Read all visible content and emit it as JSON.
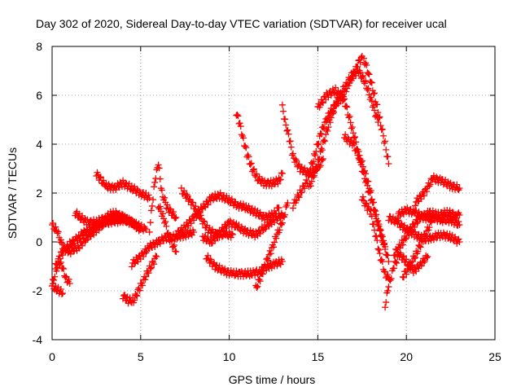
{
  "chart_data": {
    "type": "scatter",
    "title": "Day 302 of 2020, Sidereal Day-to-day VTEC variation (SDTVAR) for receiver ucal",
    "xlabel": "GPS time / hours",
    "ylabel": "SDTVAR / TECUs",
    "xlim": [
      0,
      25
    ],
    "ylim": [
      -4,
      8
    ],
    "xticks": [
      "0",
      "5",
      "10",
      "15",
      "20",
      "25"
    ],
    "yticks": [
      "-4",
      "-2",
      "0",
      "2",
      "4",
      "6",
      "8"
    ],
    "grid": true,
    "marker": "+",
    "color": "#ff0000",
    "series": [
      {
        "name": "s1",
        "x": [
          0.0,
          0.3,
          0.6,
          1.0,
          1.5,
          2.0,
          2.5,
          3.0,
          3.5,
          4.0,
          4.5,
          5.0
        ],
        "y": [
          0.7,
          0.4,
          -0.2,
          -0.4,
          -0.2,
          0.2,
          0.5,
          0.8,
          1.0,
          1.0,
          0.8,
          0.5
        ]
      },
      {
        "name": "s2",
        "x": [
          0.0,
          0.2,
          0.4,
          0.6,
          0.8,
          1.0
        ],
        "y": [
          -1.8,
          -1.2,
          -0.8,
          -1.1,
          -1.5,
          -1.7
        ]
      },
      {
        "name": "s3",
        "x": [
          0.0,
          0.2,
          0.4,
          0.6
        ],
        "y": [
          -1.8,
          -1.9,
          -2.0,
          -2.1
        ]
      },
      {
        "name": "s4",
        "x": [
          0.2,
          0.5,
          1.0,
          1.5,
          2.0,
          3.0,
          4.0,
          4.5
        ],
        "y": [
          -1.0,
          -0.5,
          -0.1,
          0.2,
          0.5,
          0.8,
          0.9,
          0.8
        ]
      },
      {
        "name": "s5",
        "x": [
          1.3,
          1.6,
          2.0,
          2.5,
          3.0,
          3.5,
          4.0,
          4.5,
          5.0,
          5.3
        ],
        "y": [
          1.2,
          1.0,
          0.8,
          0.8,
          1.0,
          1.2,
          1.0,
          0.8,
          0.6,
          0.5
        ]
      },
      {
        "name": "s6",
        "x": [
          2.5,
          3.0,
          3.5,
          4.0,
          4.5,
          5.0,
          5.5
        ],
        "y": [
          2.8,
          2.3,
          2.2,
          2.4,
          2.2,
          2.0,
          1.8
        ]
      },
      {
        "name": "s7",
        "x": [
          4.0,
          4.3,
          4.6,
          5.0,
          5.5,
          5.9
        ],
        "y": [
          -2.2,
          -2.4,
          -2.4,
          -1.8,
          -1.1,
          -0.6
        ]
      },
      {
        "name": "s8",
        "x": [
          4.5,
          5.0,
          5.5,
          6.0,
          6.5,
          7.0,
          7.5,
          8.0
        ],
        "y": [
          -0.9,
          -0.6,
          -0.2,
          0.0,
          0.2,
          0.2,
          0.3,
          0.4
        ]
      },
      {
        "name": "s9",
        "x": [
          5.5,
          5.8,
          6.0,
          6.2,
          6.5,
          7.0
        ],
        "y": [
          0.5,
          2.5,
          3.2,
          2.0,
          1.4,
          1.0
        ]
      },
      {
        "name": "s10",
        "x": [
          6.0,
          6.3,
          6.6,
          7.0
        ],
        "y": [
          1.5,
          1.0,
          0.2,
          -0.4
        ]
      },
      {
        "name": "s11",
        "x": [
          7.3,
          7.8,
          8.3,
          8.8,
          9.3,
          9.8,
          10.2
        ],
        "y": [
          2.1,
          1.7,
          1.1,
          0.5,
          0.3,
          0.3,
          0.3
        ]
      },
      {
        "name": "s12",
        "x": [
          7.0,
          7.5,
          8.0,
          8.5,
          9.0,
          9.5,
          10.0,
          10.5,
          11.0,
          11.5,
          12.0,
          12.5,
          12.8
        ],
        "y": [
          0.3,
          0.6,
          1.0,
          1.4,
          1.8,
          1.9,
          1.7,
          1.5,
          1.4,
          1.2,
          1.0,
          1.1,
          1.4
        ]
      },
      {
        "name": "s13",
        "x": [
          8.5,
          9.0,
          9.5,
          10.0,
          10.5,
          11.0,
          11.5,
          12.0,
          12.5,
          13.0
        ],
        "y": [
          0.2,
          0.0,
          0.4,
          0.8,
          0.6,
          0.4,
          0.3,
          0.6,
          0.9,
          1.1
        ]
      },
      {
        "name": "s14",
        "x": [
          8.7,
          9.2,
          9.7,
          10.2,
          10.7,
          11.2,
          11.7,
          12.2,
          12.6,
          13.0
        ],
        "y": [
          -0.6,
          -1.0,
          -1.2,
          -1.3,
          -1.3,
          -1.3,
          -1.2,
          -1.0,
          -0.9,
          -0.8
        ]
      },
      {
        "name": "s15",
        "x": [
          10.4,
          10.6,
          10.8,
          11.0,
          11.3,
          11.6,
          12.0,
          12.4,
          12.8,
          13.0
        ],
        "y": [
          5.3,
          4.8,
          4.2,
          3.6,
          3.0,
          2.6,
          2.4,
          2.4,
          2.5,
          2.8
        ]
      },
      {
        "name": "s16",
        "x": [
          11.5,
          11.8,
          12.1,
          12.4,
          12.7,
          13.0,
          13.3
        ],
        "y": [
          -1.9,
          -1.4,
          -0.8,
          -0.3,
          0.3,
          0.8,
          1.6
        ]
      },
      {
        "name": "s17",
        "x": [
          13.0,
          13.2,
          13.4,
          13.6,
          14.0,
          14.5,
          15.0,
          15.3
        ],
        "y": [
          5.5,
          4.8,
          4.2,
          3.5,
          3.0,
          2.8,
          3.0,
          3.4
        ]
      },
      {
        "name": "s18",
        "x": [
          13.6,
          14.0,
          14.4,
          14.8,
          15.2,
          15.6,
          16.0,
          16.4,
          16.8,
          17.2,
          17.5
        ],
        "y": [
          1.5,
          2.0,
          2.5,
          3.5,
          4.5,
          5.2,
          5.6,
          6.0,
          6.5,
          7.2,
          7.6
        ]
      },
      {
        "name": "s19",
        "x": [
          14.5,
          14.9,
          15.3,
          15.7,
          16.1,
          16.5,
          16.9,
          17.3,
          17.7,
          18.1,
          18.4
        ],
        "y": [
          2.2,
          3.0,
          4.0,
          5.0,
          5.8,
          6.3,
          6.8,
          7.0,
          6.5,
          5.6,
          4.9
        ]
      },
      {
        "name": "s20",
        "x": [
          15.0,
          15.5,
          16.0,
          16.5,
          17.0,
          17.5,
          18.0,
          18.5,
          18.8
        ],
        "y": [
          5.5,
          6.0,
          6.2,
          5.8,
          4.5,
          3.0,
          1.8,
          0.5,
          -0.3
        ]
      },
      {
        "name": "s21",
        "x": [
          16.5,
          17.0,
          17.5,
          18.0,
          18.3,
          18.7,
          19.0
        ],
        "y": [
          4.3,
          4.0,
          3.2,
          2.0,
          1.0,
          0.0,
          -0.8
        ]
      },
      {
        "name": "s22",
        "x": [
          17.6,
          17.9,
          18.2,
          18.5,
          18.8,
          19.0
        ],
        "y": [
          7.5,
          6.8,
          6.0,
          5.0,
          4.0,
          3.2
        ]
      },
      {
        "name": "s23",
        "x": [
          17.5,
          17.8,
          18.0,
          18.2,
          18.5,
          18.8,
          19.0
        ],
        "y": [
          1.8,
          1.4,
          1.2,
          0.5,
          -0.5,
          -1.3,
          -1.5
        ]
      },
      {
        "name": "s24",
        "x": [
          18.8,
          19.0,
          19.3,
          19.6,
          20.0,
          20.4,
          20.8,
          21.2
        ],
        "y": [
          -2.6,
          -1.8,
          -1.0,
          -0.5,
          -0.8,
          -1.2,
          -0.9,
          -0.6
        ]
      },
      {
        "name": "s25",
        "x": [
          19.0,
          19.5,
          20.0,
          20.5,
          21.0,
          21.5,
          22.0,
          22.5,
          23.0
        ],
        "y": [
          1.0,
          0.8,
          0.5,
          0.3,
          0.1,
          0.2,
          0.3,
          0.2,
          0.0
        ]
      },
      {
        "name": "s26",
        "x": [
          19.3,
          19.8,
          20.3,
          20.8,
          21.3,
          21.8,
          22.3,
          22.8,
          23.0
        ],
        "y": [
          -0.5,
          0.0,
          0.6,
          1.0,
          1.2,
          1.1,
          1.2,
          1.1,
          1.1
        ]
      },
      {
        "name": "s27",
        "x": [
          19.5,
          20.0,
          20.5,
          21.0,
          21.5,
          22.0,
          22.5,
          23.0
        ],
        "y": [
          1.1,
          1.3,
          1.2,
          1.0,
          1.0,
          0.9,
          0.9,
          0.7
        ]
      },
      {
        "name": "s28",
        "x": [
          20.5,
          21.0,
          21.5,
          22.0,
          22.5,
          23.0
        ],
        "y": [
          1.6,
          2.0,
          2.6,
          2.5,
          2.3,
          2.2
        ]
      },
      {
        "name": "s29",
        "x": [
          19.8,
          20.2,
          20.6,
          21.0,
          21.4
        ],
        "y": [
          -1.4,
          -1.0,
          -0.4,
          0.2,
          0.8
        ]
      }
    ]
  }
}
